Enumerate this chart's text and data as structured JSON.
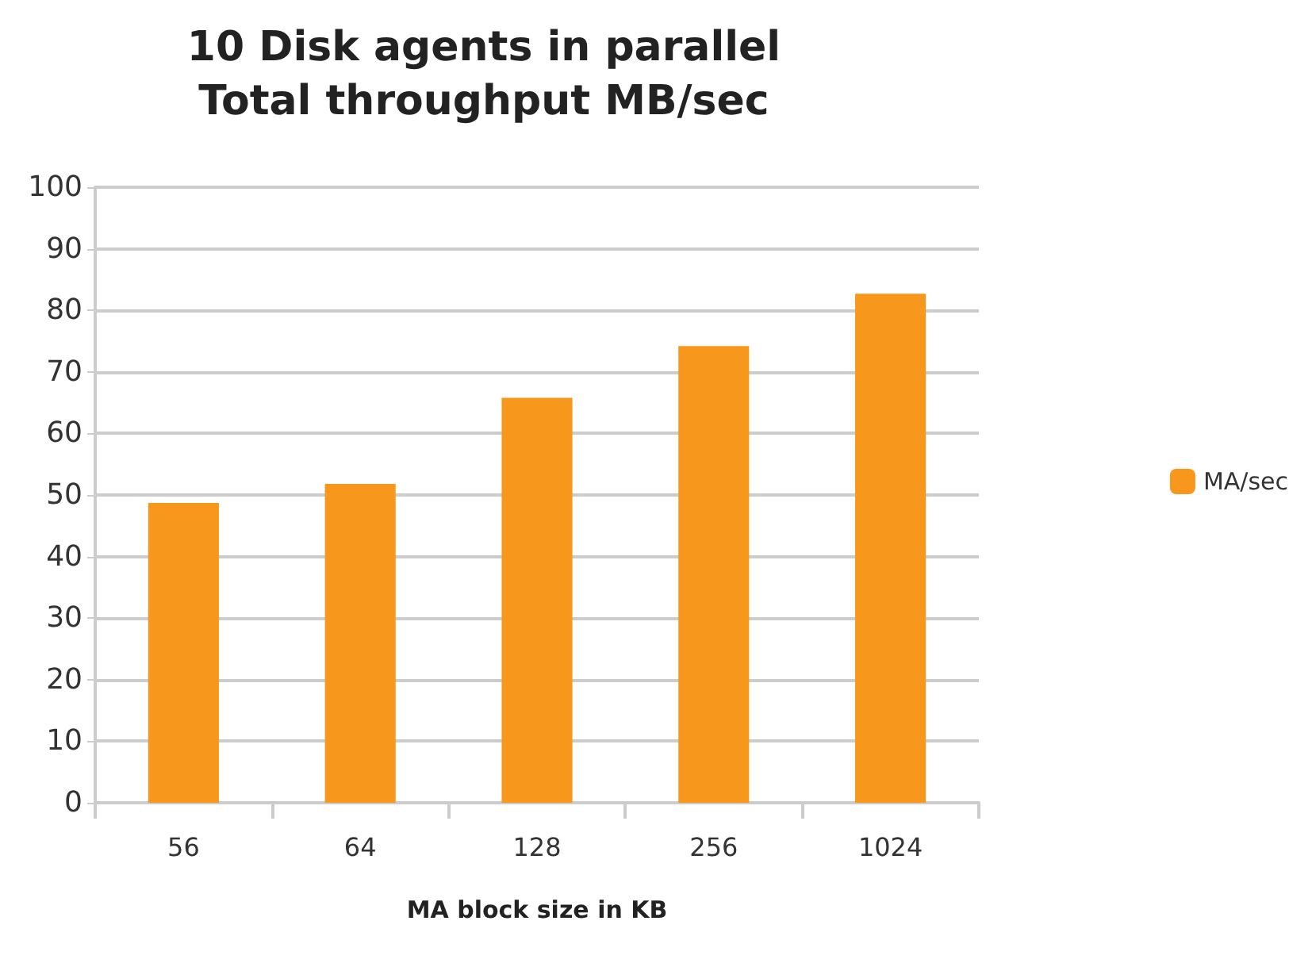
{
  "chart_data": {
    "type": "bar",
    "title": "10 Disk agents in parallel\nTotal throughput MB/sec",
    "xlabel": "MA block size in KB",
    "categories": [
      "56",
      "64",
      "128",
      "256",
      "1024"
    ],
    "series": [
      {
        "name": "MA/sec",
        "color": "#f7981d",
        "values": [
          48.7,
          51.8,
          65.8,
          74.2,
          82.7
        ]
      }
    ],
    "ylim": [
      0,
      100
    ],
    "yticks": [
      0,
      10,
      20,
      30,
      40,
      50,
      60,
      70,
      80,
      90,
      100
    ],
    "grid": "y",
    "legend": "right"
  }
}
